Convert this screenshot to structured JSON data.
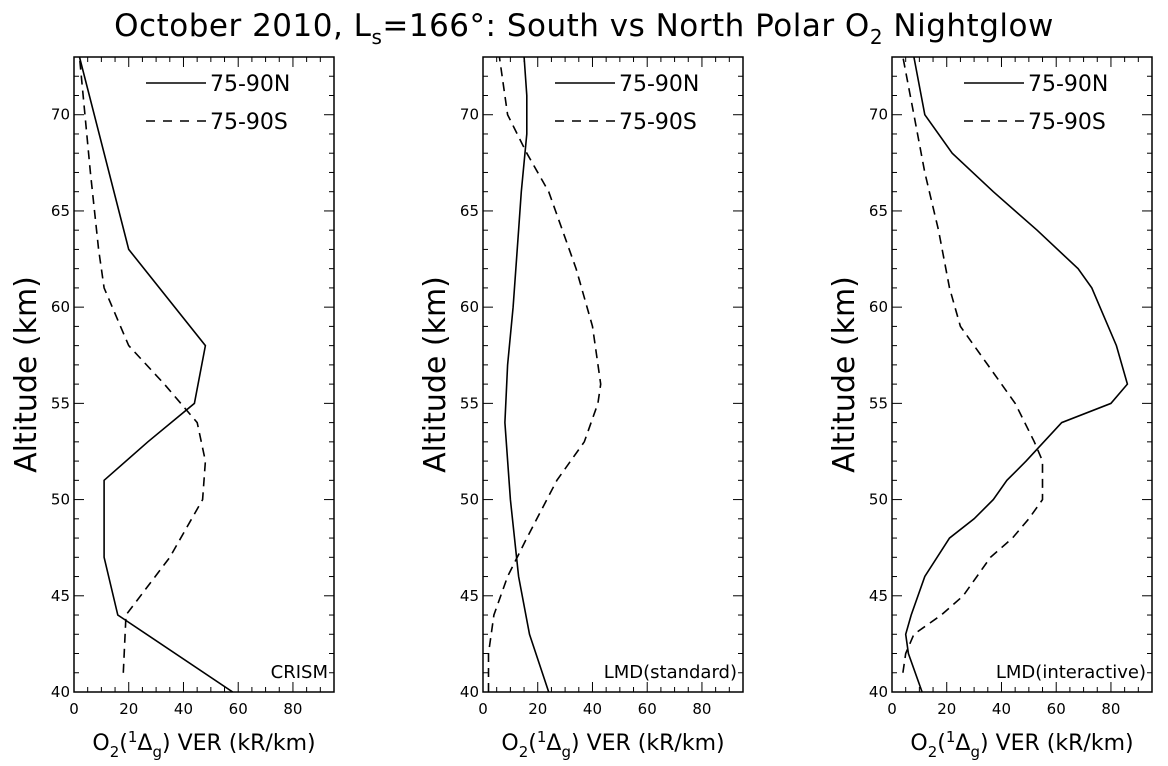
{
  "title": {
    "main": "October 2010, L",
    "sub": "s",
    "rest": "=166°: South vs North Polar O",
    "sub2": "2",
    "tail": " Nightglow"
  },
  "axis_labels": {
    "y": "Altitude (km)",
    "x_o2": "O",
    "x_sub2": "2",
    "x_paren_open": "(",
    "x_sup1": "1",
    "x_delta": "Δ",
    "x_subg": "g",
    "x_rest": ") VER (kR/km)"
  },
  "chart_data": [
    {
      "type": "line",
      "panel": "CRISM",
      "annotation": "CRISM",
      "xlim": [
        0,
        95
      ],
      "ylim": [
        40,
        73
      ],
      "xticks": [
        0,
        20,
        40,
        60,
        80
      ],
      "yticks": [
        40,
        45,
        50,
        55,
        60,
        65,
        70
      ],
      "grid": false,
      "legend_position": "top-right",
      "series": [
        {
          "name": "75-90N",
          "style": "solid",
          "x": [
            58,
            16,
            11,
            11,
            27,
            44,
            48,
            20,
            2
          ],
          "y": [
            40,
            44,
            47,
            51,
            53,
            55,
            58,
            63,
            73
          ]
        },
        {
          "name": "75-90S",
          "style": "dashed",
          "x": [
            18,
            19,
            35,
            47,
            48,
            45,
            33,
            20,
            11,
            9,
            6,
            2
          ],
          "y": [
            41,
            44,
            47,
            50,
            52,
            54,
            56,
            58,
            61,
            63,
            67,
            73
          ]
        }
      ]
    },
    {
      "type": "line",
      "panel": "LMD(standard)",
      "annotation": "LMD(standard)",
      "xlim": [
        0,
        95
      ],
      "ylim": [
        40,
        73
      ],
      "xticks": [
        0,
        20,
        40,
        60,
        80
      ],
      "yticks": [
        40,
        45,
        50,
        55,
        60,
        65,
        70
      ],
      "grid": false,
      "legend_position": "top-right",
      "series": [
        {
          "name": "75-90N",
          "style": "solid",
          "x": [
            24,
            17,
            13,
            10,
            8,
            9,
            11,
            13,
            14,
            16,
            16,
            15
          ],
          "y": [
            40,
            43,
            46,
            50,
            54,
            57,
            60,
            64,
            66,
            69,
            71,
            73
          ]
        },
        {
          "name": "75-90S",
          "style": "dashed",
          "x": [
            2,
            2,
            4,
            9,
            16,
            27,
            37,
            42,
            43,
            40,
            34,
            24,
            16,
            9,
            6
          ],
          "y": [
            40,
            42,
            44,
            46,
            48,
            51,
            53,
            55,
            56,
            59,
            62,
            66,
            68,
            70,
            73
          ]
        }
      ]
    },
    {
      "type": "line",
      "panel": "LMD(interactive)",
      "annotation": "LMD(interactive)",
      "xlim": [
        0,
        95
      ],
      "ylim": [
        40,
        73
      ],
      "xticks": [
        0,
        20,
        40,
        60,
        80
      ],
      "yticks": [
        40,
        45,
        50,
        55,
        60,
        65,
        70
      ],
      "grid": false,
      "legend_position": "top-right",
      "series": [
        {
          "name": "75-90N",
          "style": "solid",
          "x": [
            11,
            6,
            5,
            7,
            12,
            21,
            30,
            37,
            42,
            49,
            62,
            80,
            86,
            82,
            76,
            73,
            68,
            53,
            37,
            22,
            12,
            8
          ],
          "y": [
            40,
            42,
            43,
            44,
            46,
            48,
            49,
            50,
            51,
            52,
            54,
            55,
            56,
            58,
            60,
            61,
            62,
            64,
            66,
            68,
            70,
            73
          ]
        },
        {
          "name": "75-90S",
          "style": "dashed",
          "x": [
            4,
            5,
            8,
            18,
            26,
            36,
            44,
            50,
            55,
            55,
            52,
            45,
            35,
            25,
            21,
            17,
            12,
            8,
            4
          ],
          "y": [
            41,
            42,
            43,
            44,
            45,
            47,
            48,
            49,
            50,
            52,
            53,
            55,
            57,
            59,
            61,
            64,
            67,
            70,
            73
          ]
        }
      ]
    }
  ]
}
